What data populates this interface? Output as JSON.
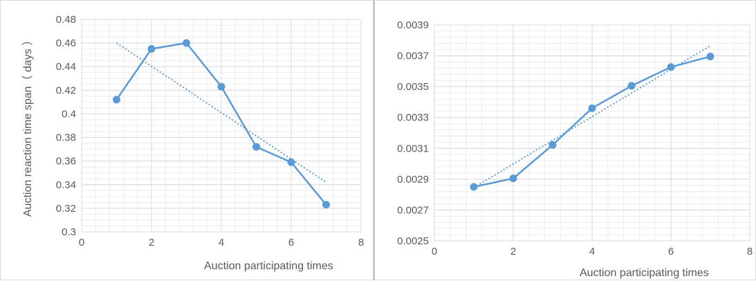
{
  "chart_data": [
    {
      "type": "line",
      "title": "",
      "xlabel": "Auction participating times",
      "ylabel": "Auction reaction time span（ days ）",
      "xlim": [
        0,
        8
      ],
      "ylim": [
        0.3,
        0.48
      ],
      "x_ticks": [
        0,
        2,
        4,
        6,
        8
      ],
      "y_ticks": [
        0.3,
        0.32,
        0.34,
        0.36,
        0.38,
        0.4,
        0.42,
        0.44,
        0.46,
        0.48
      ],
      "x_tick_labels": [
        "0",
        "2",
        "4",
        "6",
        "8"
      ],
      "y_tick_labels": [
        "0.3",
        "0.32",
        "0.34",
        "0.36",
        "0.38",
        "0.4",
        "0.42",
        "0.44",
        "0.46",
        "0.48"
      ],
      "minor_grid_step": 0.005,
      "grid": true,
      "series": [
        {
          "x": [
            1,
            2,
            3,
            4,
            5,
            6,
            7
          ],
          "values": [
            0.412,
            0.455,
            0.46,
            0.423,
            0.372,
            0.359,
            0.323
          ]
        }
      ],
      "trendline": {
        "style": "dotted",
        "type": "linear",
        "x": [
          1,
          7
        ],
        "values": [
          0.46,
          0.342
        ]
      },
      "colors": {
        "series": "#5b9bd5",
        "grid": "#d9d9d9",
        "minor_grid": "#ececec",
        "text": "#595959"
      }
    },
    {
      "type": "line",
      "title": "",
      "xlabel": "Auction participating times",
      "ylabel": "",
      "xlim": [
        0,
        8
      ],
      "ylim": [
        0.0025,
        0.0039
      ],
      "x_ticks": [
        0,
        2,
        4,
        6,
        8
      ],
      "y_ticks": [
        0.0025,
        0.0027,
        0.0029,
        0.0031,
        0.0033,
        0.0035,
        0.0037,
        0.0039
      ],
      "x_tick_labels": [
        "0",
        "2",
        "4",
        "6",
        "8"
      ],
      "y_tick_labels": [
        "0.0025",
        "0.0027",
        "0.0029",
        "0.0031",
        "0.0033",
        "0.0035",
        "0.0037",
        "0.0039"
      ],
      "minor_grid_step": 4e-05,
      "grid": true,
      "series": [
        {
          "x": [
            1,
            2,
            3,
            4,
            5,
            6,
            7
          ],
          "values": [
            0.00285,
            0.002905,
            0.003122,
            0.00336,
            0.003505,
            0.003627,
            0.003695
          ]
        }
      ],
      "trendline": {
        "style": "dotted",
        "type": "linear",
        "x": [
          1,
          7
        ],
        "values": [
          0.002845,
          0.003765
        ]
      },
      "colors": {
        "series": "#5b9bd5",
        "grid": "#d9d9d9",
        "minor_grid": "#ececec",
        "text": "#595959"
      }
    }
  ]
}
